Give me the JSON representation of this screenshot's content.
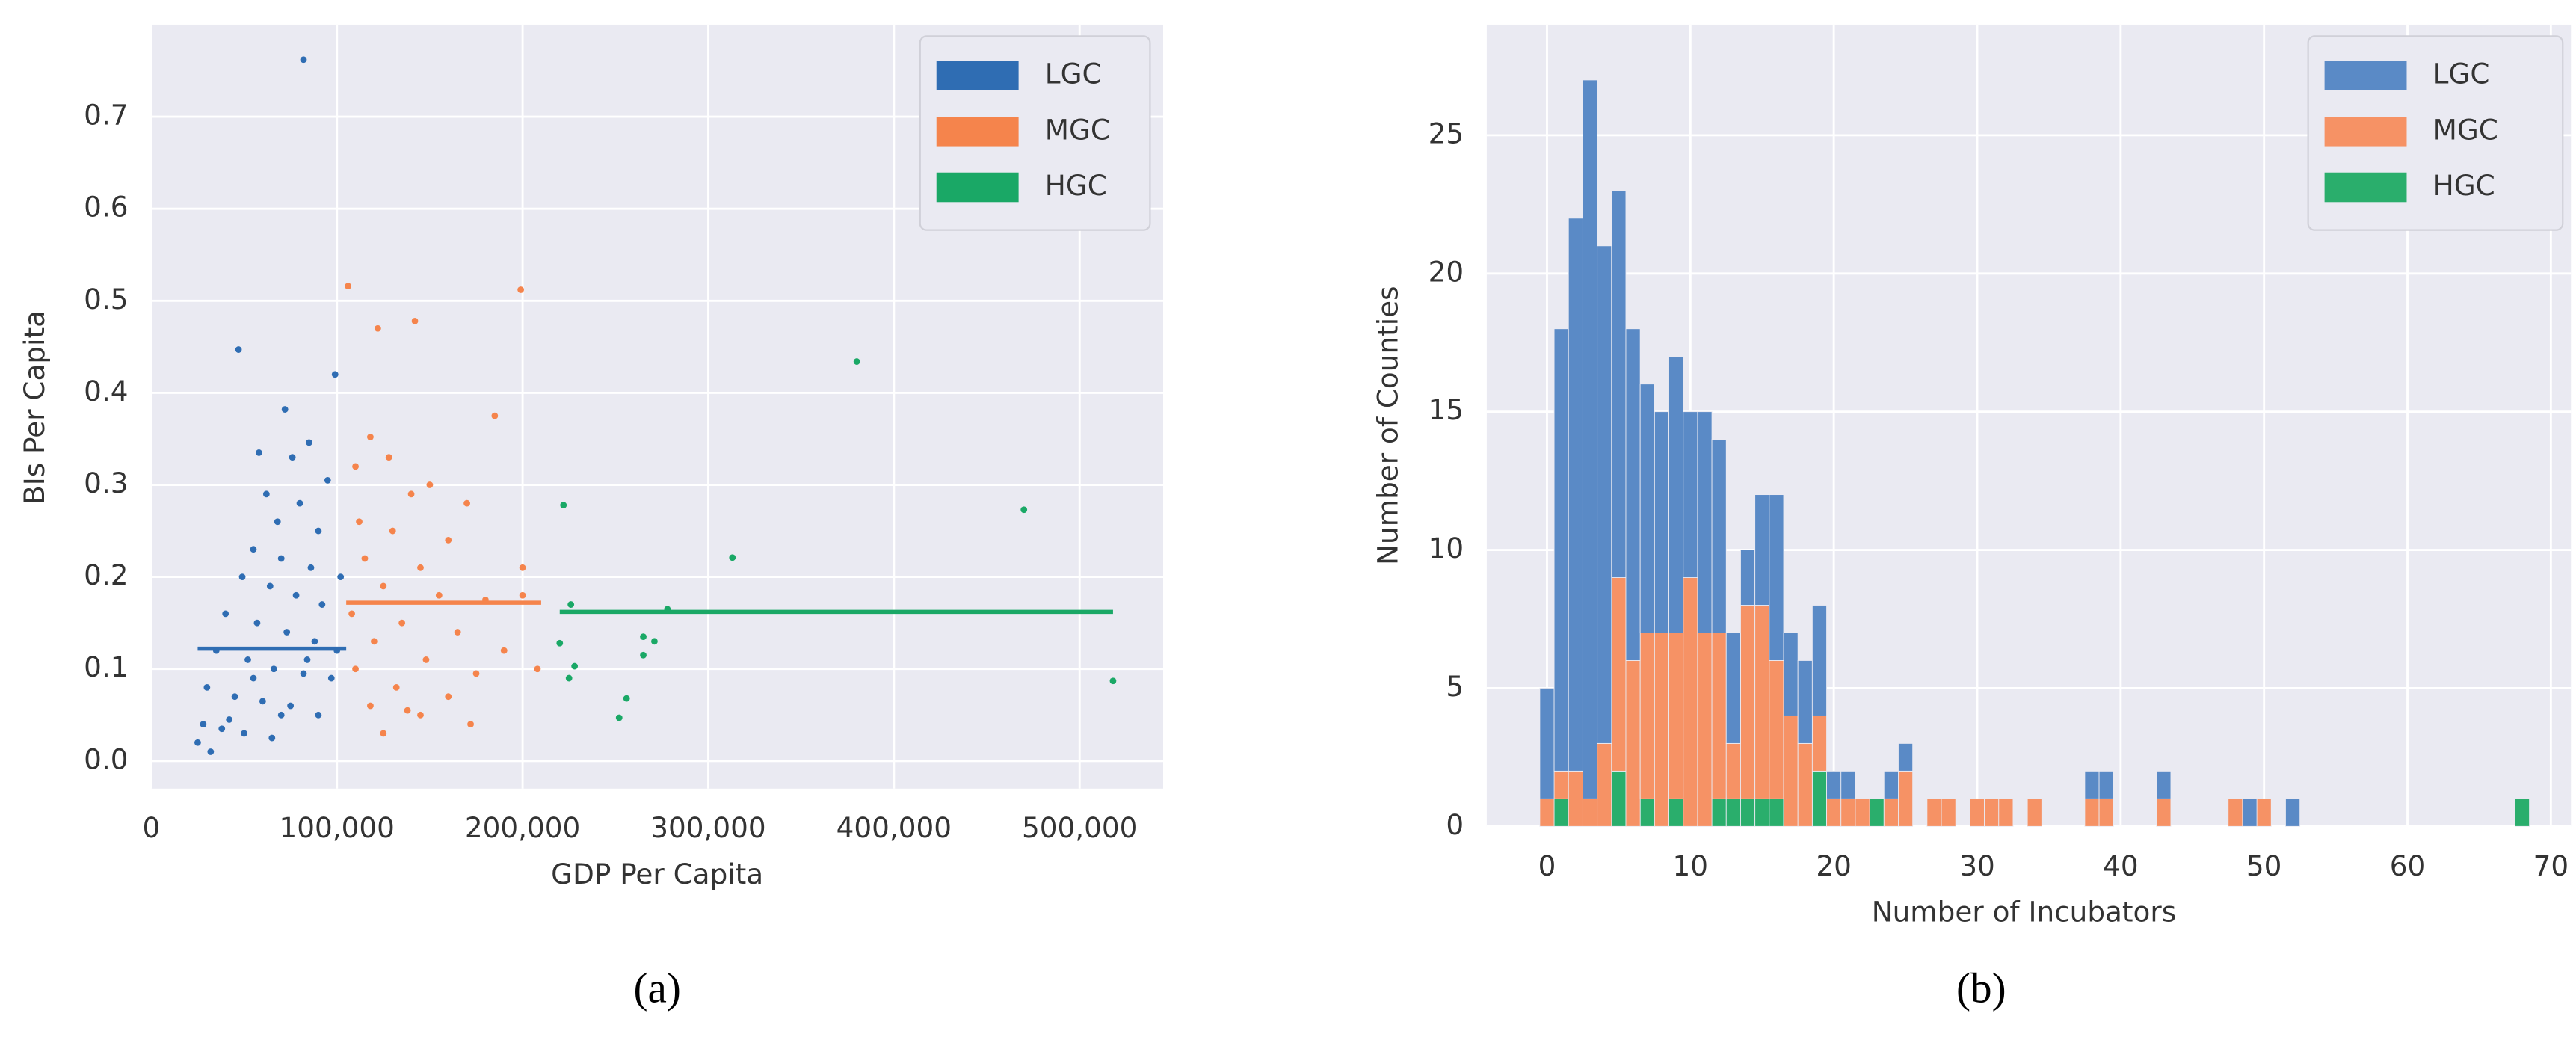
{
  "chart_data": [
    {
      "type": "scatter",
      "caption": "(a)",
      "xlabel": "GDP Per Capita",
      "ylabel": "BIs Per Capita",
      "xlim": [
        0,
        545000
      ],
      "ylim": [
        -0.03,
        0.8
      ],
      "xticks": [
        0,
        {
          "value": 100000,
          "label": "100,000"
        },
        {
          "value": 200000,
          "label": "200,000"
        },
        {
          "value": 300000,
          "label": "300,000"
        },
        {
          "value": 400000,
          "label": "400,000"
        },
        {
          "value": 500000,
          "label": "500,000"
        }
      ],
      "yticks": [
        {
          "value": 0,
          "label": "0.0"
        },
        0.1,
        0.2,
        0.3,
        0.4,
        0.5,
        0.6,
        0.7
      ],
      "grid": true,
      "legend": "upper right",
      "series": [
        {
          "name": "LGC",
          "color": "#2f6db3",
          "mean": 0.122,
          "mean_xlim": [
            25000,
            105000
          ],
          "x": [
            82000,
            47000,
            99000,
            72000,
            85000,
            58000,
            76000,
            95000,
            62000,
            80000,
            68000,
            90000,
            55000,
            70000,
            86000,
            49000,
            64000,
            78000,
            92000,
            40000,
            57000,
            73000,
            88000,
            35000,
            52000,
            66000,
            82000,
            97000,
            30000,
            45000,
            60000,
            75000,
            90000,
            28000,
            38000,
            50000,
            65000,
            25000,
            32000,
            42000,
            100000,
            102000,
            55000,
            70000,
            84000
          ],
          "values": [
            0.762,
            0.447,
            0.42,
            0.382,
            0.346,
            0.335,
            0.33,
            0.305,
            0.29,
            0.28,
            0.26,
            0.25,
            0.23,
            0.22,
            0.21,
            0.2,
            0.19,
            0.18,
            0.17,
            0.16,
            0.15,
            0.14,
            0.13,
            0.12,
            0.11,
            0.1,
            0.095,
            0.09,
            0.08,
            0.07,
            0.065,
            0.06,
            0.05,
            0.04,
            0.035,
            0.03,
            0.025,
            0.02,
            0.01,
            0.045,
            0.12,
            0.2,
            0.09,
            0.05,
            0.11
          ]
        },
        {
          "name": "MGC",
          "color": "#f5844c",
          "mean": 0.172,
          "mean_xlim": [
            105000,
            210000
          ],
          "x": [
            106000,
            142000,
            122000,
            199000,
            185000,
            118000,
            128000,
            110000,
            150000,
            140000,
            170000,
            112000,
            130000,
            160000,
            115000,
            145000,
            200000,
            125000,
            155000,
            180000,
            108000,
            135000,
            165000,
            120000,
            190000,
            148000,
            110000,
            175000,
            208000,
            132000,
            160000,
            118000,
            145000,
            172000,
            125000,
            138000,
            200000
          ],
          "values": [
            0.516,
            0.478,
            0.47,
            0.512,
            0.375,
            0.352,
            0.33,
            0.32,
            0.3,
            0.29,
            0.28,
            0.26,
            0.25,
            0.24,
            0.22,
            0.21,
            0.21,
            0.19,
            0.18,
            0.175,
            0.16,
            0.15,
            0.14,
            0.13,
            0.12,
            0.11,
            0.1,
            0.095,
            0.1,
            0.08,
            0.07,
            0.06,
            0.05,
            0.04,
            0.03,
            0.055,
            0.18
          ]
        },
        {
          "name": "HGC",
          "color": "#1aa866",
          "mean": 0.162,
          "mean_xlim": [
            220000,
            518000
          ],
          "x": [
            380000,
            470000,
            222000,
            313000,
            226000,
            278000,
            220000,
            265000,
            271000,
            265000,
            228000,
            225000,
            256000,
            252000,
            518000
          ],
          "values": [
            0.434,
            0.273,
            0.278,
            0.221,
            0.17,
            0.165,
            0.128,
            0.135,
            0.13,
            0.115,
            0.103,
            0.09,
            0.068,
            0.047,
            0.087
          ]
        }
      ]
    },
    {
      "type": "histogram",
      "caption": "(b)",
      "xlabel": "Number of Incubators",
      "ylabel": "Number of Counties",
      "xlim": [
        -4.2,
        71.4
      ],
      "ylim": [
        0,
        29
      ],
      "xticks": [
        0,
        10,
        20,
        30,
        40,
        50,
        60,
        70
      ],
      "yticks": [
        0,
        5,
        10,
        15,
        20,
        25
      ],
      "grid": true,
      "legend": "upper right",
      "stacked": true,
      "bins": [
        -0.5,
        0.5,
        1.5,
        2.5,
        3.5,
        4.5,
        5.5,
        6.5,
        7.5,
        8.5,
        9.5,
        10.5,
        11.5,
        12.5,
        13.5,
        14.5,
        15.5,
        16.5,
        17.5,
        18.5,
        19.5,
        20.5,
        21.5,
        22.5,
        23.5,
        24.5,
        25.5,
        26.5,
        27.5,
        28.5,
        29.5,
        30.5,
        31.5,
        32.5,
        33.5,
        34.5,
        35.5,
        36.5,
        37.5,
        38.5,
        39.5,
        40.5,
        41.5,
        42.5,
        43.5,
        44.5,
        45.5,
        46.5,
        47.5,
        48.5,
        49.5,
        50.5,
        51.5,
        52.5,
        53.5,
        54.5,
        55.5,
        56.5,
        57.5,
        58.5,
        59.5,
        60.5,
        61.5,
        62.5,
        63.5,
        64.5,
        65.5,
        66.5,
        67.5,
        68.5,
        69.5
      ],
      "series": [
        {
          "name": "LGC",
          "color": "#5a8ac6",
          "values": [
            4,
            16,
            20,
            26,
            18,
            14,
            12,
            9,
            8,
            10,
            6,
            8,
            7,
            4,
            2,
            4,
            6,
            3,
            3,
            4,
            1,
            1,
            0,
            0,
            1,
            1,
            0,
            0,
            0,
            0,
            0,
            0,
            0,
            0,
            0,
            0,
            0,
            0,
            1,
            1,
            0,
            0,
            0,
            1,
            0,
            0,
            0,
            0,
            0,
            1,
            0,
            0,
            1,
            0,
            0,
            0,
            0,
            0,
            0,
            0,
            0,
            0,
            0,
            0,
            0,
            0,
            0,
            0,
            0,
            0
          ]
        },
        {
          "name": "MGC",
          "color": "#f69265",
          "values": [
            1,
            1,
            2,
            1,
            3,
            7,
            6,
            6,
            7,
            6,
            9,
            7,
            6,
            2,
            7,
            7,
            5,
            4,
            3,
            2,
            1,
            1,
            1,
            0,
            1,
            2,
            0,
            1,
            1,
            0,
            1,
            1,
            1,
            0,
            1,
            0,
            0,
            0,
            1,
            1,
            0,
            0,
            0,
            1,
            0,
            0,
            0,
            0,
            1,
            0,
            1,
            0,
            0,
            0,
            0,
            0,
            0,
            0,
            0,
            0,
            0,
            0,
            0,
            0,
            0,
            0,
            0,
            0,
            0,
            0
          ]
        },
        {
          "name": "HGC",
          "color": "#2aae6c",
          "values": [
            0,
            1,
            0,
            0,
            0,
            2,
            0,
            1,
            0,
            1,
            0,
            0,
            1,
            1,
            1,
            1,
            1,
            0,
            0,
            2,
            0,
            0,
            0,
            1,
            0,
            0,
            0,
            0,
            0,
            0,
            0,
            0,
            0,
            0,
            0,
            0,
            0,
            0,
            0,
            0,
            0,
            0,
            0,
            0,
            0,
            0,
            0,
            0,
            0,
            0,
            0,
            0,
            0,
            0,
            0,
            0,
            0,
            0,
            0,
            0,
            0,
            0,
            0,
            0,
            0,
            0,
            0,
            0,
            1,
            0
          ]
        }
      ]
    }
  ]
}
